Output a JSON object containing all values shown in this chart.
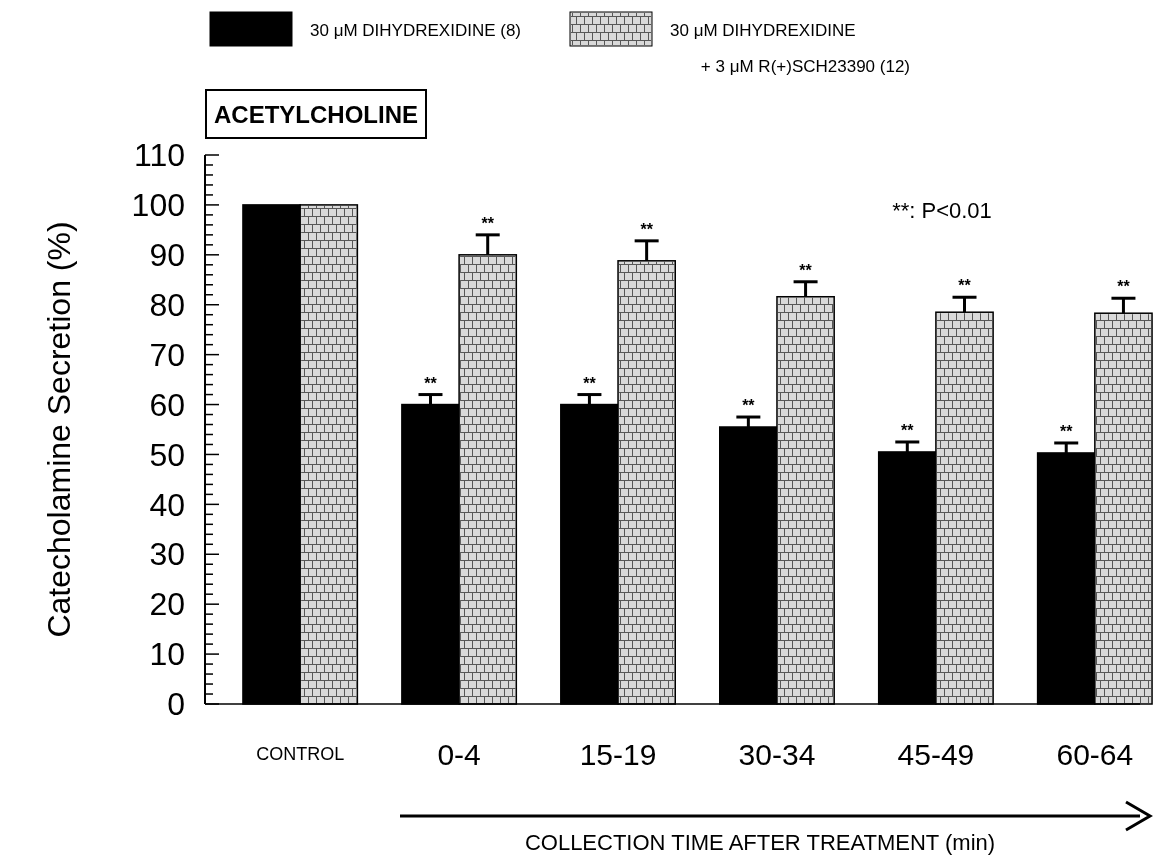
{
  "chart_data": {
    "type": "bar",
    "title": "ACETYLCHOLINE",
    "ylabel": "Catecholamine Secretion (%)",
    "xlabel": "COLLECTION TIME AFTER TREATMENT (min)",
    "categories": [
      "CONTROL",
      "0-4",
      "15-19",
      "30-34",
      "45-49",
      "60-64"
    ],
    "series": [
      {
        "name": "30 μM DIHYDREXIDINE (8)",
        "color": "#000000",
        "values": [
          100,
          60,
          60,
          55.5,
          50.5,
          50.3
        ],
        "errors": [
          null,
          2,
          2,
          2,
          2,
          2
        ],
        "value_labels": [
          null,
          "**",
          "**",
          "**",
          "**",
          "**"
        ]
      },
      {
        "name": "30 μM DIHYDREXIDINE + 3 μM R(+)SCH23390 (12)",
        "color": "#d9d9d9",
        "values": [
          100,
          90,
          88.8,
          81.6,
          78.5,
          78.3
        ],
        "errors": [
          null,
          4,
          4,
          3,
          3,
          3
        ],
        "value_labels": [
          null,
          "**",
          "**",
          "**",
          "**",
          "**"
        ]
      }
    ],
    "ylim": [
      0,
      110
    ],
    "yticks": [
      0,
      {
        "value": 2,
        "label": null
      },
      {
        "value": 4,
        "label": null
      },
      {
        "value": 6,
        "label": null
      },
      {
        "value": 8,
        "label": null
      },
      10,
      {
        "value": 12,
        "label": null
      },
      {
        "value": 14,
        "label": null
      },
      {
        "value": 16,
        "label": null
      },
      {
        "value": 18,
        "label": null
      },
      20,
      {
        "value": 22,
        "label": null
      },
      {
        "value": 24,
        "label": null
      },
      {
        "value": 26,
        "label": null
      },
      {
        "value": 28,
        "label": null
      },
      30,
      {
        "value": 32,
        "label": null
      },
      {
        "value": 34,
        "label": null
      },
      {
        "value": 36,
        "label": null
      },
      {
        "value": 38,
        "label": null
      },
      40,
      {
        "value": 42,
        "label": null
      },
      {
        "value": 44,
        "label": null
      },
      {
        "value": 46,
        "label": null
      },
      {
        "value": 48,
        "label": null
      },
      50,
      {
        "value": 52,
        "label": null
      },
      {
        "value": 54,
        "label": null
      },
      {
        "value": 56,
        "label": null
      },
      {
        "value": 58,
        "label": null
      },
      60,
      {
        "value": 62,
        "label": null
      },
      {
        "value": 64,
        "label": null
      },
      {
        "value": 66,
        "label": null
      },
      {
        "value": 68,
        "label": null
      },
      70,
      {
        "value": 72,
        "label": null
      },
      {
        "value": 74,
        "label": null
      },
      {
        "value": 76,
        "label": null
      },
      {
        "value": 78,
        "label": null
      },
      80,
      {
        "value": 82,
        "label": null
      },
      {
        "value": 84,
        "label": null
      },
      {
        "value": 86,
        "label": null
      },
      {
        "value": 88,
        "label": null
      },
      90,
      {
        "value": 92,
        "label": null
      },
      {
        "value": 94,
        "label": null
      },
      {
        "value": 96,
        "label": null
      },
      {
        "value": 98,
        "label": null
      },
      100,
      {
        "value": 102,
        "label": null
      },
      {
        "value": 104,
        "label": null
      },
      {
        "value": 106,
        "label": null
      },
      {
        "value": 108,
        "label": null
      },
      110
    ],
    "legend": "top left",
    "grid": false,
    "annotations": [
      "**: P<0.01"
    ]
  }
}
